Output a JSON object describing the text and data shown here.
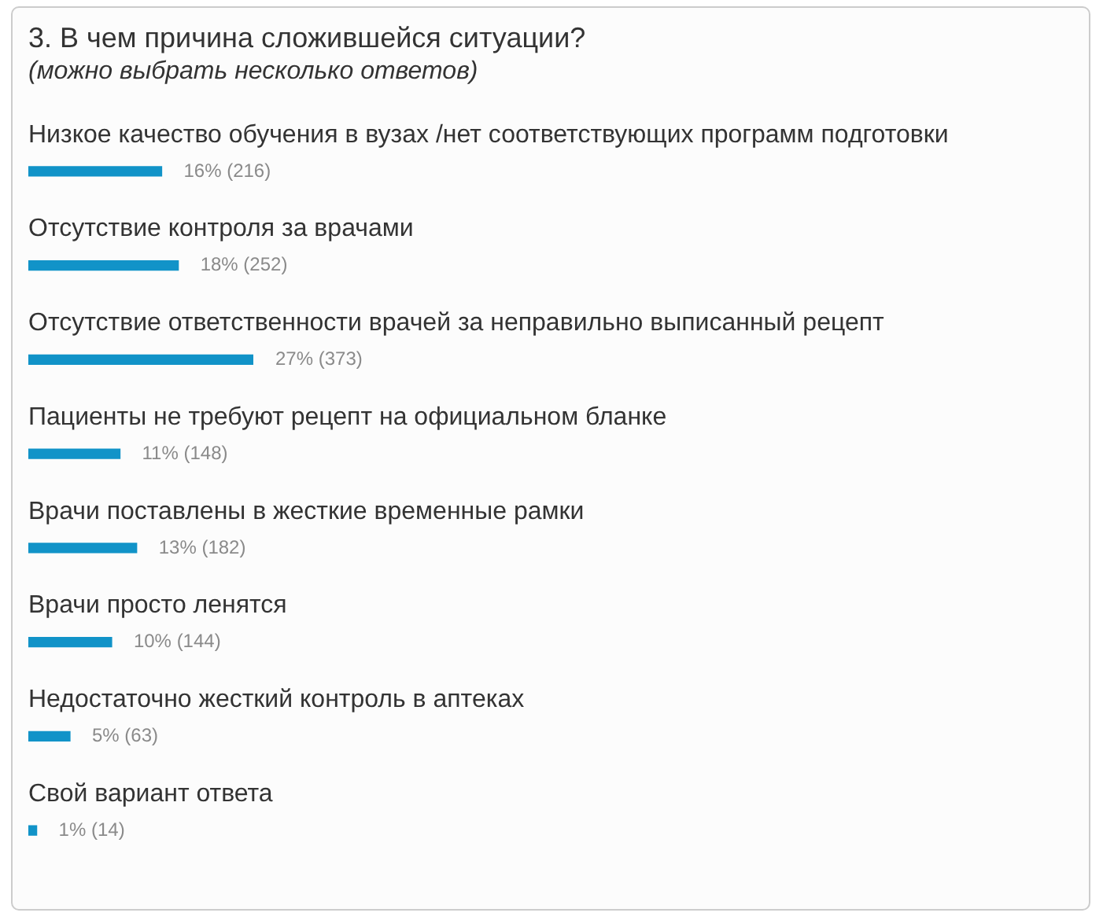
{
  "chart_data": {
    "type": "bar",
    "orientation": "horizontal",
    "title": "3. В чем причина сложившейся ситуации?",
    "subtitle": "(можно выбрать несколько ответов)",
    "categories": [
      "Низкое качество обучения в вузах /нет соответствующих программ подготовки",
      "Отсутствие контроля за врачами",
      "Отсутствие ответственности врачей за неправильно выписанный рецепт",
      "Пациенты не требуют рецепт на официальном бланке",
      "Врачи поставлены в жесткие временные рамки",
      "Врачи просто ленятся",
      "Недостаточно жесткий контроль в аптеках",
      "Свой вариант ответа"
    ],
    "values": [
      16,
      18,
      27,
      11,
      13,
      10,
      5,
      1
    ],
    "value_labels": [
      "16% (216)",
      "18% (252)",
      "27% (373)",
      "11% (148)",
      "13% (182)",
      "10% (144)",
      "5% (63)",
      "1% (14)"
    ],
    "color": "#1193c8"
  }
}
